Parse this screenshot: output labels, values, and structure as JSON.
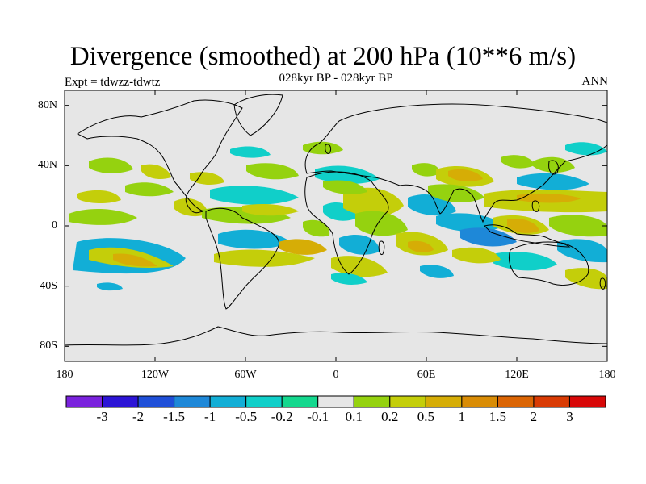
{
  "title": "Divergence (smoothed) at 200 hPa (10**6 m/s)",
  "subtitle_left": "Expt = tdwzz-tdwtz",
  "subtitle_center": "028kyr BP - 028kyr BP",
  "subtitle_right": "ANN",
  "map": {
    "projection": "cylindrical-equidistant",
    "lon_range": [
      -180,
      180
    ],
    "lat_range": [
      -90,
      90
    ],
    "background_color": "#e6e6e6",
    "coastline_color": "#000000",
    "y_ticks": [
      {
        "lat": 80,
        "label": "80N"
      },
      {
        "lat": 40,
        "label": "40N"
      },
      {
        "lat": 0,
        "label": "0"
      },
      {
        "lat": -40,
        "label": "40S"
      },
      {
        "lat": -80,
        "label": "80S"
      }
    ],
    "x_ticks": [
      {
        "lon": -180,
        "label": "180"
      },
      {
        "lon": -120,
        "label": "120W"
      },
      {
        "lon": -60,
        "label": "60W"
      },
      {
        "lon": 0,
        "label": "0"
      },
      {
        "lon": 60,
        "label": "60E"
      },
      {
        "lon": 120,
        "label": "120E"
      },
      {
        "lon": 180,
        "label": "180"
      }
    ]
  },
  "colorbar": {
    "colors": [
      "#7a22dd",
      "#2c14d6",
      "#1f4fd8",
      "#1e88d8",
      "#12aed6",
      "#10cfc9",
      "#14d88e",
      "#e6e6e6",
      "#95d20f",
      "#c4ce0a",
      "#d6ad06",
      "#d98c05",
      "#db6504",
      "#d93b04",
      "#d80808"
    ],
    "labels": [
      "-3",
      "-2",
      "-1.5",
      "-1",
      "-0.5",
      "-0.2",
      "-0.1",
      "0.1",
      "0.2",
      "0.5",
      "1",
      "1.5",
      "2",
      "3"
    ]
  }
}
